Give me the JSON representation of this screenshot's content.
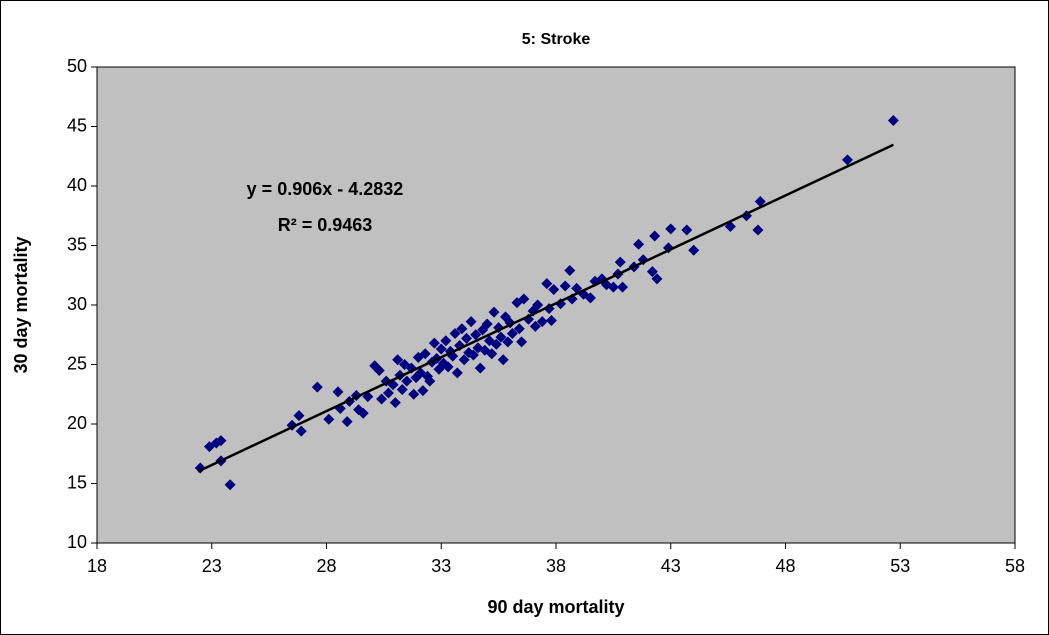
{
  "chart_data": {
    "type": "scatter",
    "title": "5: Stroke",
    "x_label": "90 day mortality",
    "y_label": "30 day mortality",
    "xlim": [
      18,
      58
    ],
    "xticks": [
      18,
      23,
      28,
      33,
      38,
      43,
      48,
      53,
      58
    ],
    "ylim": [
      10,
      50
    ],
    "yticks": [
      10,
      15,
      20,
      25,
      30,
      35,
      40,
      45,
      50
    ],
    "grid": false,
    "annotations": [
      "y = 0.906x - 4.2832",
      "R² = 0.9463"
    ],
    "trendline": {
      "slope": 0.906,
      "intercept": -4.2832,
      "x": [
        22.4,
        52.7
      ],
      "color": "#000000"
    },
    "series": [
      {
        "color": "#000080",
        "x": [
          22.5,
          22.9,
          23.2,
          23.4,
          23.4,
          23.8,
          26.5,
          26.8,
          26.9,
          27.6,
          28.1,
          28.5,
          28.6,
          28.9,
          29.0,
          29.3,
          29.4,
          29.6,
          29.8,
          30.1,
          30.3,
          30.4,
          30.6,
          30.7,
          30.9,
          31.0,
          31.1,
          31.2,
          31.3,
          31.4,
          31.5,
          31.7,
          31.8,
          31.9,
          32.0,
          32.1,
          32.2,
          32.3,
          32.4,
          32.5,
          32.6,
          32.7,
          32.8,
          32.9,
          33.0,
          33.1,
          33.2,
          33.3,
          33.4,
          33.5,
          33.6,
          33.7,
          33.8,
          33.9,
          34.0,
          34.1,
          34.2,
          34.3,
          34.4,
          34.5,
          34.6,
          34.7,
          34.8,
          34.9,
          35.0,
          35.1,
          35.2,
          35.3,
          35.4,
          35.5,
          35.6,
          35.7,
          35.8,
          35.9,
          36.0,
          36.1,
          36.3,
          36.4,
          36.5,
          36.6,
          36.8,
          37.0,
          37.1,
          37.2,
          37.4,
          37.6,
          37.7,
          37.8,
          37.9,
          38.2,
          38.4,
          38.6,
          38.7,
          38.9,
          39.2,
          39.5,
          39.7,
          40.0,
          40.2,
          40.5,
          40.7,
          40.8,
          40.9,
          41.4,
          41.6,
          41.8,
          42.2,
          42.3,
          42.4,
          42.9,
          43.0,
          43.7,
          44.0,
          45.6,
          46.3,
          46.8,
          46.9,
          50.7,
          52.7
        ],
        "values": [
          16.3,
          18.1,
          18.4,
          18.6,
          16.9,
          14.9,
          19.9,
          20.7,
          19.4,
          23.1,
          20.4,
          22.7,
          21.3,
          20.2,
          21.9,
          22.4,
          21.2,
          20.9,
          22.3,
          24.9,
          24.5,
          22.1,
          23.6,
          22.6,
          23.3,
          21.8,
          25.4,
          24.1,
          22.9,
          25.0,
          23.6,
          24.7,
          22.5,
          23.9,
          25.6,
          24.3,
          22.8,
          25.9,
          24.0,
          23.6,
          25.2,
          26.8,
          25.5,
          24.6,
          26.3,
          25.1,
          27.0,
          24.8,
          26.1,
          25.7,
          27.6,
          24.3,
          26.6,
          28.0,
          25.4,
          27.2,
          26.0,
          28.6,
          25.8,
          27.5,
          26.4,
          24.7,
          27.9,
          26.2,
          28.4,
          27.0,
          25.9,
          29.4,
          26.7,
          28.1,
          27.3,
          25.4,
          29.0,
          26.9,
          28.5,
          27.6,
          30.2,
          28.0,
          26.9,
          30.5,
          28.8,
          29.5,
          28.2,
          30.0,
          28.6,
          31.8,
          29.7,
          28.7,
          31.3,
          30.1,
          31.6,
          32.9,
          30.5,
          31.4,
          30.9,
          30.6,
          32.0,
          32.2,
          31.7,
          31.5,
          32.6,
          33.6,
          31.5,
          33.2,
          35.1,
          33.8,
          32.8,
          35.8,
          32.2,
          34.8,
          36.4,
          36.3,
          34.6,
          36.6,
          37.5,
          36.3,
          38.7,
          42.2,
          45.5
        ]
      }
    ]
  }
}
